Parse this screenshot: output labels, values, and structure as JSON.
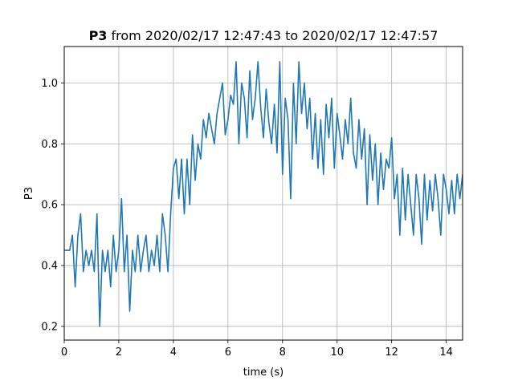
{
  "chart_data": {
    "type": "line",
    "title": {
      "bold": "P3",
      "rest": " from 2020/02/17 12:47:43 to 2020/02/17 12:47:57"
    },
    "xlabel": "time (s)",
    "ylabel": "P3",
    "xlim": [
      0,
      14.6
    ],
    "ylim": [
      0.155,
      1.12
    ],
    "grid": true,
    "series_color": "#1f77b4",
    "x_ticks": [
      0,
      2,
      4,
      6,
      8,
      10,
      12,
      14
    ],
    "y_ticks": [
      0.2,
      0.4,
      0.6,
      0.8,
      1.0
    ],
    "x_tick_labels": [
      "0",
      "2",
      "4",
      "6",
      "8",
      "10",
      "12",
      "14"
    ],
    "y_tick_labels": [
      "0.2",
      "0.4",
      "0.6",
      "0.8",
      "1.0"
    ],
    "series": [
      {
        "x": [
          0.0,
          0.2,
          0.3,
          0.4,
          0.5,
          0.6,
          0.7,
          0.8,
          0.9,
          1.0,
          1.1,
          1.2,
          1.3,
          1.4,
          1.5,
          1.6,
          1.7,
          1.8,
          1.9,
          2.0,
          2.1,
          2.2,
          2.3,
          2.4,
          2.5,
          2.6,
          2.7,
          2.8,
          2.9,
          3.0,
          3.1,
          3.2,
          3.3,
          3.4,
          3.5,
          3.6,
          3.7,
          3.8,
          3.9,
          4.0,
          4.1,
          4.2,
          4.3,
          4.4,
          4.5,
          4.6,
          4.7,
          4.8,
          4.9,
          5.0,
          5.1,
          5.2,
          5.3,
          5.4,
          5.5,
          5.6,
          5.7,
          5.8,
          5.9,
          6.0,
          6.1,
          6.2,
          6.3,
          6.4,
          6.5,
          6.6,
          6.7,
          6.8,
          6.9,
          7.0,
          7.1,
          7.2,
          7.3,
          7.4,
          7.5,
          7.6,
          7.7,
          7.8,
          7.9,
          8.0,
          8.1,
          8.2,
          8.3,
          8.4,
          8.5,
          8.6,
          8.7,
          8.8,
          8.9,
          9.0,
          9.1,
          9.2,
          9.3,
          9.4,
          9.5,
          9.6,
          9.7,
          9.8,
          9.9,
          10.0,
          10.1,
          10.2,
          10.3,
          10.4,
          10.5,
          10.6,
          10.7,
          10.8,
          10.9,
          11.0,
          11.1,
          11.2,
          11.3,
          11.4,
          11.5,
          11.6,
          11.7,
          11.8,
          11.9,
          12.0,
          12.1,
          12.2,
          12.3,
          12.4,
          12.5,
          12.6,
          12.7,
          12.8,
          12.9,
          13.0,
          13.1,
          13.2,
          13.3,
          13.4,
          13.5,
          13.6,
          13.7,
          13.8,
          13.9,
          14.0,
          14.1,
          14.2,
          14.3,
          14.4,
          14.5,
          14.6
        ],
        "values": [
          0.45,
          0.45,
          0.5,
          0.33,
          0.5,
          0.57,
          0.38,
          0.45,
          0.4,
          0.45,
          0.38,
          0.57,
          0.2,
          0.45,
          0.38,
          0.45,
          0.33,
          0.5,
          0.38,
          0.45,
          0.62,
          0.38,
          0.5,
          0.25,
          0.45,
          0.38,
          0.5,
          0.38,
          0.45,
          0.5,
          0.38,
          0.45,
          0.4,
          0.5,
          0.38,
          0.57,
          0.5,
          0.38,
          0.57,
          0.72,
          0.75,
          0.62,
          0.75,
          0.57,
          0.75,
          0.6,
          0.83,
          0.68,
          0.8,
          0.75,
          0.88,
          0.82,
          0.9,
          0.85,
          0.8,
          0.9,
          0.95,
          1.0,
          0.83,
          0.88,
          0.96,
          0.93,
          1.07,
          0.8,
          1.0,
          0.95,
          0.82,
          1.04,
          0.88,
          0.95,
          1.07,
          0.92,
          0.82,
          0.98,
          0.87,
          0.8,
          0.93,
          0.77,
          1.07,
          0.7,
          0.95,
          0.88,
          0.62,
          1.0,
          0.8,
          1.07,
          0.9,
          1.0,
          0.85,
          0.95,
          0.75,
          0.9,
          0.72,
          0.88,
          0.7,
          0.93,
          0.82,
          0.95,
          0.72,
          0.9,
          0.83,
          0.75,
          0.88,
          0.8,
          0.95,
          0.77,
          0.72,
          0.88,
          0.75,
          0.85,
          0.6,
          0.83,
          0.68,
          0.8,
          0.6,
          0.77,
          0.65,
          0.75,
          0.72,
          0.82,
          0.62,
          0.7,
          0.5,
          0.72,
          0.55,
          0.7,
          0.6,
          0.5,
          0.7,
          0.62,
          0.47,
          0.7,
          0.55,
          0.68,
          0.58,
          0.7,
          0.62,
          0.5,
          0.7,
          0.65,
          0.57,
          0.68,
          0.57,
          0.7,
          0.62,
          0.7
        ]
      }
    ]
  }
}
